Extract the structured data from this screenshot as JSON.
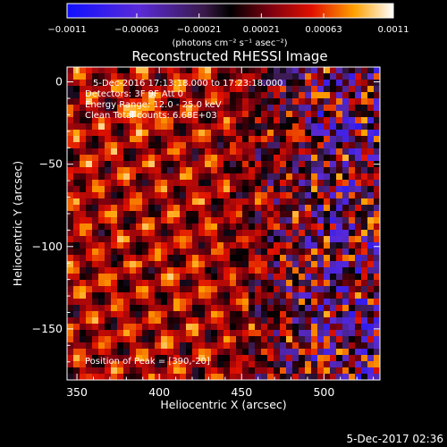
{
  "chart_data": {
    "type": "heatmap",
    "title": "Reconstructed RHESSI Image",
    "xlabel": "Heliocentric X (arcsec)",
    "ylabel": "Heliocentric Y (arcsec)",
    "xlim": [
      344,
      534
    ],
    "ylim": [
      -181,
      9
    ],
    "x_ticks": [
      350,
      400,
      450,
      500
    ],
    "y_ticks": [
      0,
      -50,
      -100,
      -150
    ],
    "colorbar": {
      "ticks": [
        "-0.0011",
        "-0.00063",
        "-0.00021",
        "0.00021",
        "0.00063",
        "0.0011"
      ],
      "range": [
        -0.0011,
        0.0011
      ],
      "unit_label": "(photons cm⁻² s⁻¹ asec⁻²)"
    },
    "annotations": [
      "5-Dec-2016 17:13:18.000 to 17:23:18.000",
      "Detectors: 3F 9F  Att 0",
      "Energy Range: 12.0 - 25.0 keV",
      "Clean    Total counts: 6.68E+03"
    ],
    "peak_label": "Position of Peak = [390,-20]",
    "peak": [
      390,
      -20
    ],
    "grid": false,
    "colors": {
      "background": "#000000",
      "text": "#ffffff"
    }
  },
  "footer": {
    "timestamp": "5-Dec-2017 02:36"
  }
}
